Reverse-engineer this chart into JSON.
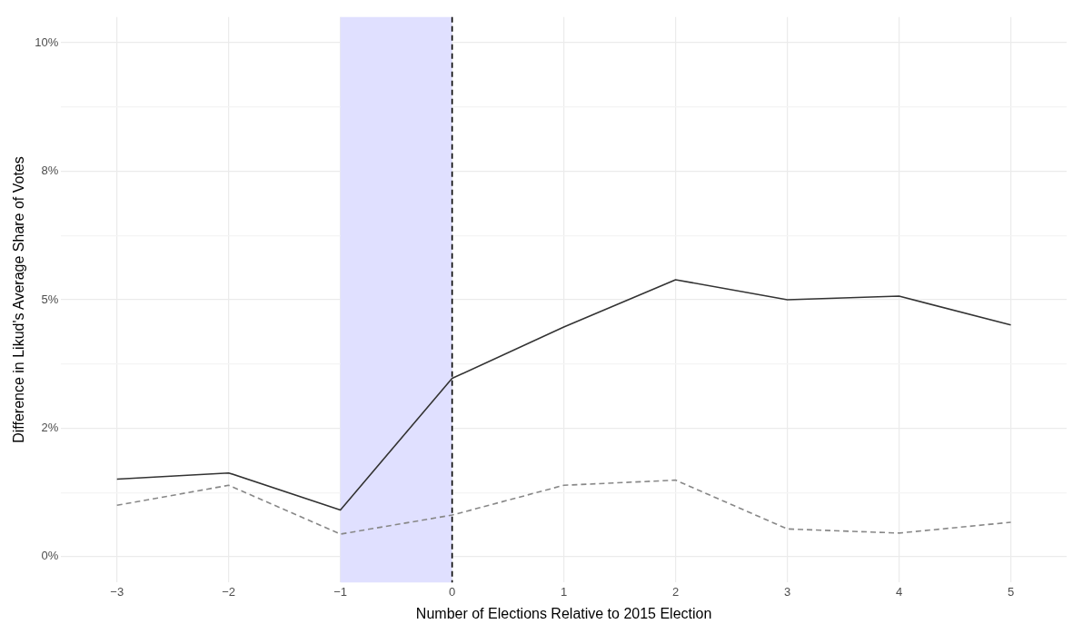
{
  "chart_data": {
    "type": "line",
    "xlabel": "Number of Elections Relative to 2015 Election",
    "ylabel": "Difference in Likud's Average Share of Votes",
    "x": [
      -3,
      -2,
      -1,
      0,
      1,
      2,
      3,
      4,
      5
    ],
    "series": [
      {
        "color": "#333333",
        "line_style": "solid",
        "values": [
          1.51,
          1.63,
          0.91,
          3.47,
          4.47,
          5.39,
          5.0,
          5.07,
          4.51
        ]
      },
      {
        "color": "#888888",
        "line_style": "dashed",
        "values": [
          1.0,
          1.39,
          0.44,
          0.81,
          1.39,
          1.49,
          0.54,
          0.46,
          0.67
        ]
      }
    ],
    "xlim": [
      -3.5,
      5.5
    ],
    "xticks": [
      {
        "value": -3,
        "label": "−3"
      },
      {
        "value": -2,
        "label": "−2"
      },
      {
        "value": -1,
        "label": "−1"
      },
      0,
      1,
      2,
      3,
      4,
      5
    ],
    "ylim": [
      -0.5,
      10.5
    ],
    "yticks": [
      {
        "value": 0,
        "label": "0%"
      },
      {
        "value": 1.25,
        "label": null
      },
      {
        "value": 2.5,
        "label": "2%"
      },
      {
        "value": 3.75,
        "label": null
      },
      {
        "value": 5,
        "label": "5%"
      },
      {
        "value": 6.25,
        "label": null
      },
      {
        "value": 7.5,
        "label": "8%"
      },
      {
        "value": 8.75,
        "label": null
      },
      {
        "value": 10,
        "label": "10%"
      }
    ],
    "bands": [
      {
        "axis": "x",
        "from": -1,
        "to": 0,
        "color": "#e0e0ff"
      }
    ],
    "ref_lines": [
      {
        "axis": "x",
        "value": 0,
        "color": "#000000",
        "line_style": "dashed"
      }
    ],
    "grid": true,
    "legend": false,
    "marker": "none"
  }
}
